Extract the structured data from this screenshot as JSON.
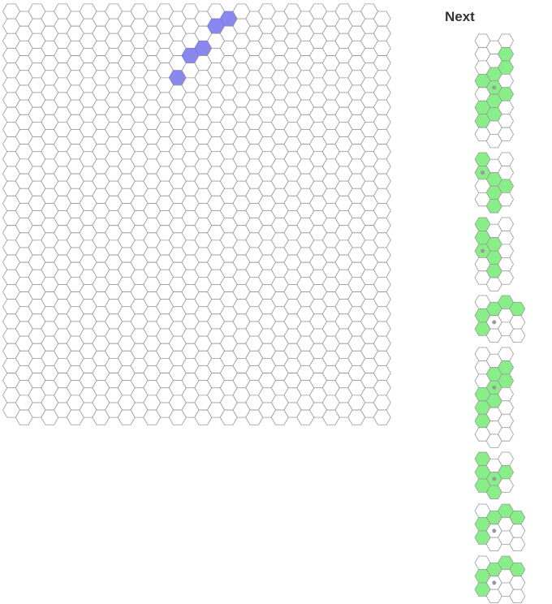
{
  "board": {
    "name": "game-board",
    "columns": 30,
    "rows": 28,
    "active_piece": {
      "name": "falling-piece",
      "color": "#8888ee",
      "cells": [
        [
          17,
          0
        ],
        [
          16,
          1
        ],
        [
          15,
          2
        ],
        [
          14,
          3
        ],
        [
          13,
          4
        ]
      ]
    }
  },
  "next": {
    "title": "Next",
    "piece_color": "#88ee88",
    "empty_color": "#ffffff",
    "stroke_color": "#999999",
    "pivot_color": "#999999",
    "pieces": [
      {
        "name": "next-piece-1",
        "cells": [
          [
            0,
            0,
            0
          ],
          [
            0,
            0,
            1
          ],
          [
            0,
            1,
            1
          ],
          [
            1,
            1,
            0
          ],
          [
            0,
            1,
            1
          ],
          [
            1,
            1,
            0
          ],
          [
            1,
            0,
            0
          ],
          [
            0,
            0,
            0
          ]
        ],
        "pivot": [
          1,
          3
        ]
      },
      {
        "name": "next-piece-2",
        "cells": [
          [
            1,
            0,
            0
          ],
          [
            1,
            1,
            0
          ],
          [
            0,
            1,
            1
          ],
          [
            0,
            1,
            0
          ]
        ],
        "pivot": [
          0,
          1
        ]
      },
      {
        "name": "next-piece-3",
        "cells": [
          [
            1,
            0,
            0
          ],
          [
            1,
            1,
            0
          ],
          [
            1,
            1,
            0
          ],
          [
            0,
            1,
            0
          ],
          [
            0,
            0,
            0
          ]
        ],
        "pivot": [
          0,
          2
        ]
      },
      {
        "name": "next-piece-4",
        "cells": [
          [
            0,
            1,
            1,
            1
          ],
          [
            1,
            0,
            0,
            0
          ],
          [
            1,
            0,
            0,
            0
          ]
        ],
        "pivot": [
          1,
          1
        ]
      },
      {
        "name": "next-piece-5",
        "cells": [
          [
            0,
            0,
            0
          ],
          [
            0,
            1,
            1
          ],
          [
            0,
            1,
            1
          ],
          [
            1,
            1,
            0
          ],
          [
            1,
            0,
            0
          ],
          [
            1,
            0,
            0
          ],
          [
            0,
            0,
            0
          ]
        ],
        "pivot": [
          1,
          2
        ]
      },
      {
        "name": "next-piece-6",
        "cells": [
          [
            1,
            0,
            0
          ],
          [
            1,
            1,
            1
          ],
          [
            1,
            1,
            0
          ]
        ],
        "pivot": [
          1,
          1
        ]
      },
      {
        "name": "next-piece-7",
        "cells": [
          [
            0,
            1,
            1,
            1
          ],
          [
            1,
            0,
            0,
            0
          ],
          [
            1,
            0,
            0,
            0
          ]
        ],
        "pivot": [
          1,
          1
        ]
      },
      {
        "name": "next-piece-8",
        "cells": [
          [
            0,
            1,
            1,
            1
          ],
          [
            1,
            0,
            0,
            0
          ],
          [
            1,
            0,
            0,
            0
          ]
        ],
        "pivot": [
          1,
          1
        ]
      }
    ]
  }
}
